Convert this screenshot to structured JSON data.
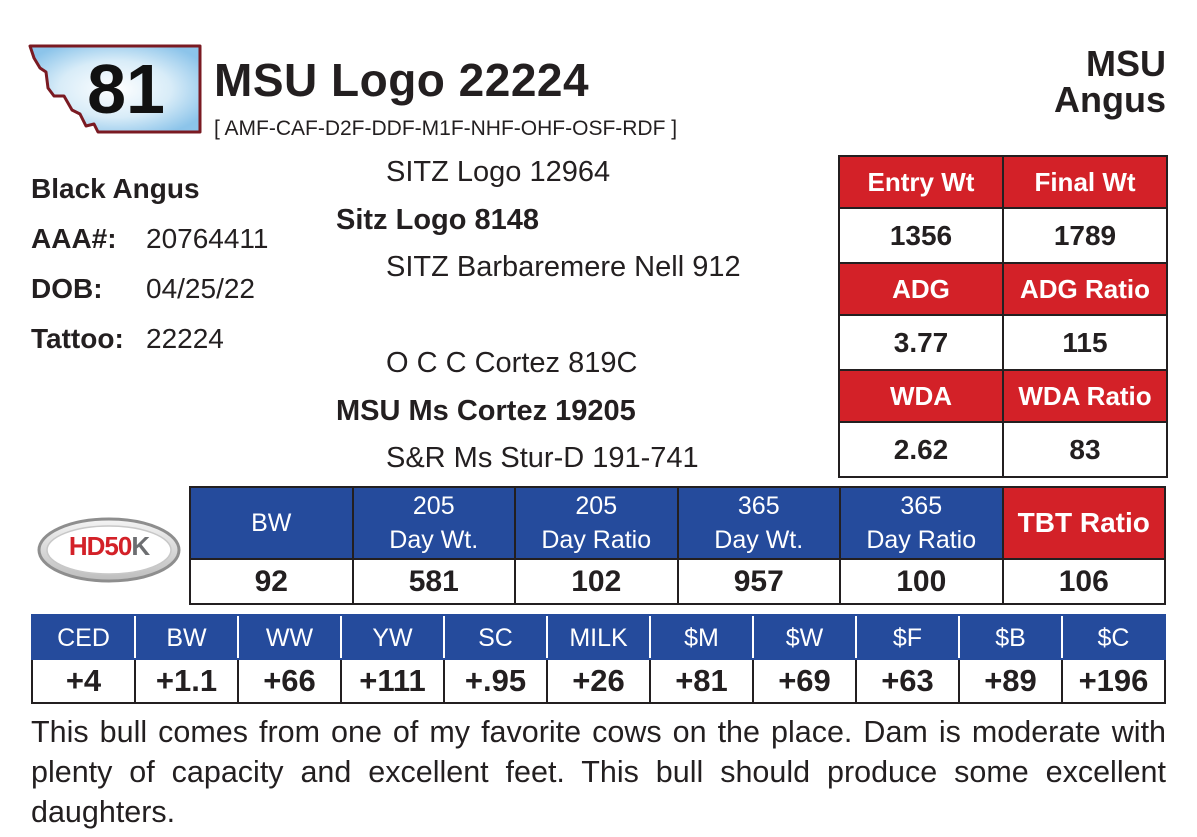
{
  "lot": {
    "number": "81"
  },
  "animal": {
    "name": "MSU Logo 22224",
    "genetic_codes": "[ AMF-CAF-D2F-DDF-M1F-NHF-OHF-OSF-RDF ]",
    "breed": "Black Angus",
    "aaa_label": "AAA#:",
    "aaa_number": "20764411",
    "dob_label": "DOB:",
    "dob": "04/25/22",
    "tattoo_label": "Tattoo:",
    "tattoo": "22224"
  },
  "breeder": {
    "line1": "MSU",
    "line2": "Angus"
  },
  "pedigree": {
    "sire_sire": "SITZ Logo 12964",
    "sire": "Sitz Logo 8148",
    "sire_dam": "SITZ Barbaremere Nell 912",
    "dam_sire": "O C C Cortez 819C",
    "dam": "MSU Ms Cortez 19205",
    "dam_dam": "S&R Ms Stur-D 191-741"
  },
  "performance": {
    "rows": [
      {
        "labels": [
          "Entry Wt",
          "Final Wt"
        ],
        "values": [
          "1356",
          "1789"
        ]
      },
      {
        "labels": [
          "ADG",
          "ADG Ratio"
        ],
        "values": [
          "3.77",
          "115"
        ]
      },
      {
        "labels": [
          "WDA",
          "WDA Ratio"
        ],
        "values": [
          "2.62",
          "83"
        ]
      }
    ]
  },
  "weights": {
    "headers": [
      {
        "line1": "BW",
        "line2": ""
      },
      {
        "line1": "205",
        "line2": "Day Wt."
      },
      {
        "line1": "205",
        "line2": "Day Ratio"
      },
      {
        "line1": "365",
        "line2": "Day Wt."
      },
      {
        "line1": "365",
        "line2": "Day Ratio"
      },
      {
        "line1": "TBT Ratio",
        "line2": ""
      }
    ],
    "values": [
      "92",
      "581",
      "102",
      "957",
      "100",
      "106"
    ]
  },
  "epds": {
    "headers": [
      "CED",
      "BW",
      "WW",
      "YW",
      "SC",
      "MILK",
      "$M",
      "$W",
      "$F",
      "$B",
      "$C"
    ],
    "values": [
      "+4",
      "+1.1",
      "+66",
      "+111",
      "+.95",
      "+26",
      "+81",
      "+69",
      "+63",
      "+89",
      "+196"
    ]
  },
  "logo": {
    "hd": "HD",
    "fifty": "50",
    "k": "K"
  },
  "comments": "This bull comes from one of my favorite cows on the place. Dam is moderate with plenty of capacity and excellent feet. This bull should produce some excellent daughters.",
  "colors": {
    "red": "#d32128",
    "blue": "#254b9c",
    "text": "#231f20",
    "badge_border": "#7a1a22"
  }
}
